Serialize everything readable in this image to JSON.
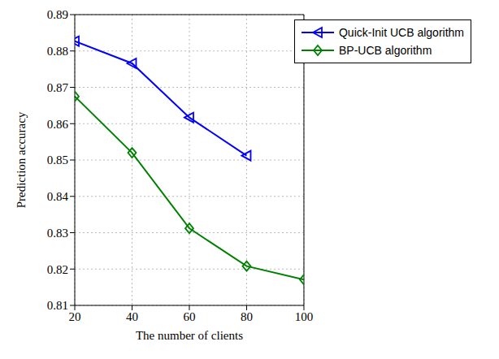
{
  "chart_data": {
    "type": "line",
    "x_label": "The number of clients",
    "y_label": "Prediction accuracy",
    "x": [
      20,
      40,
      60,
      80,
      100
    ],
    "xlim": [
      20,
      100
    ],
    "xticks": [
      20,
      40,
      60,
      80,
      100
    ],
    "ylim": [
      0.81,
      0.89
    ],
    "yticks": [
      0.81,
      0.82,
      0.83,
      0.84,
      0.85,
      0.86,
      0.87,
      0.88,
      0.89
    ],
    "grid": true,
    "legend": "upper right",
    "series": [
      {
        "name": "Quick-Init UCB algorithm",
        "color": "#0000ff",
        "marker": "triangle-left",
        "values": [
          0.8827,
          0.8766,
          0.8617,
          0.8512,
          null
        ]
      },
      {
        "name": "BP-UCB algorithm",
        "color": "#008000",
        "marker": "diamond",
        "values": [
          0.8675,
          0.852,
          0.8312,
          0.8208,
          0.8171
        ]
      }
    ]
  }
}
